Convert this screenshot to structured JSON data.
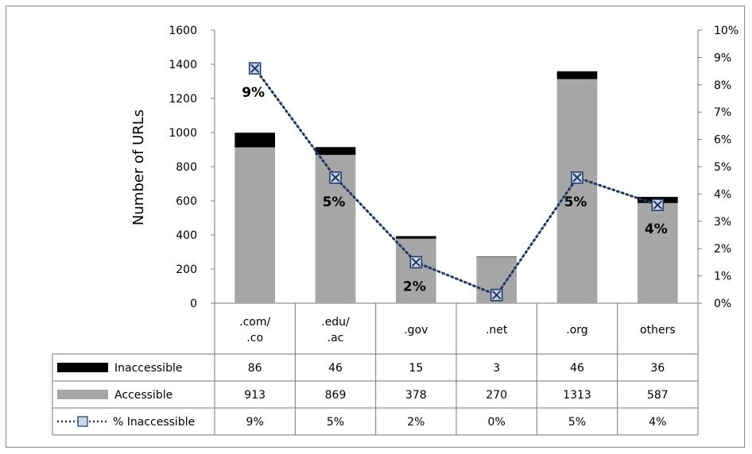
{
  "chart_data": {
    "type": "bar",
    "stacked": true,
    "categories": [
      ".com/\n.co",
      ".edu/\n.ac",
      ".gov",
      ".net",
      ".org",
      "others"
    ],
    "ylabel": "Number of URLs",
    "ylim": [
      0,
      1600
    ],
    "y_ticks": [
      "0",
      "200",
      "400",
      "600",
      "800",
      "1000",
      "1200",
      "1400",
      "1600"
    ],
    "y2lim": [
      0,
      10
    ],
    "y2_ticks": [
      "0%",
      "1%",
      "2%",
      "3%",
      "4%",
      "5%",
      "6%",
      "7%",
      "8%",
      "9%",
      "10%"
    ],
    "grid": false,
    "series": [
      {
        "name": "Accessible",
        "kind": "bar",
        "color": "#a6a6a6",
        "values": [
          913,
          869,
          378,
          270,
          1313,
          587
        ]
      },
      {
        "name": "Inaccessible",
        "kind": "bar",
        "color": "#000000",
        "values": [
          86,
          46,
          15,
          3,
          46,
          36
        ]
      },
      {
        "name": "% Inaccessible",
        "kind": "line",
        "axis": "right",
        "color": "#1f3864",
        "values": [
          8.6,
          4.6,
          1.5,
          0.3,
          4.6,
          3.6
        ]
      }
    ],
    "point_labels": [
      "9%",
      "5%",
      "2%",
      "",
      "5%",
      "4%"
    ],
    "data_table": {
      "rows": [
        {
          "key": "Inaccessible",
          "label": "Inaccessible",
          "values": [
            "86",
            "46",
            "15",
            "3",
            "46",
            "36"
          ]
        },
        {
          "key": "Accessible",
          "label": "Accessible",
          "values": [
            "913",
            "869",
            "378",
            "270",
            "1313",
            "587"
          ]
        },
        {
          "key": "pct",
          "label": "% Inaccessible",
          "values": [
            "9%",
            "5%",
            "2%",
            "0%",
            "5%",
            "4%"
          ]
        }
      ]
    }
  }
}
